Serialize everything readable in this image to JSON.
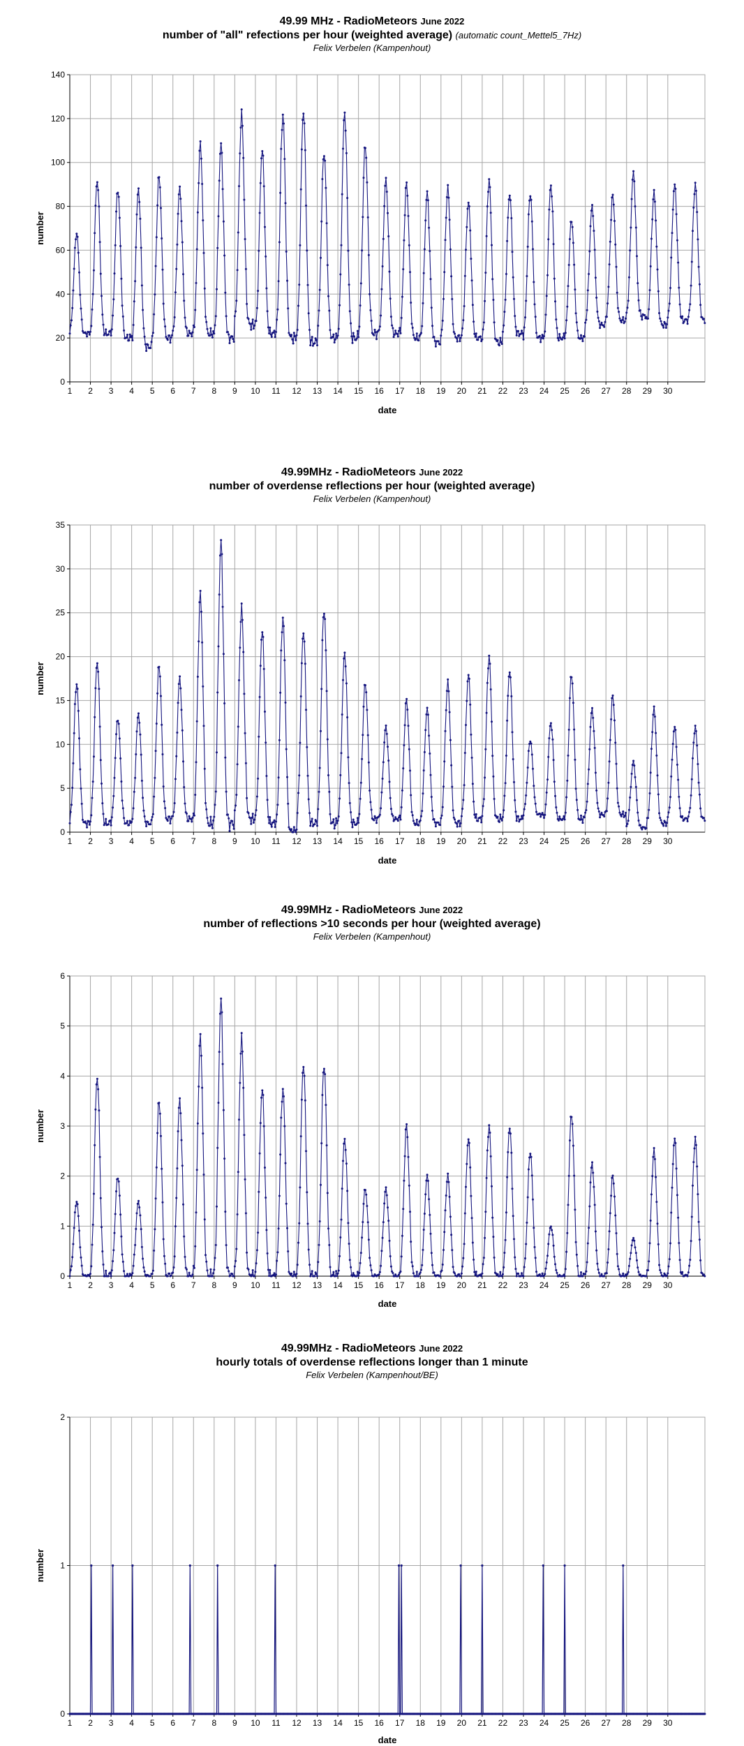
{
  "chart_data": [
    {
      "type": "line",
      "title_main": "49.99 MHz - RadioMeteors",
      "title_month": "June 2022",
      "subtitle": "number of \"all\" refections per hour (weighted average)",
      "subtitle_note": "(automatic count_Mettel5_7Hz)",
      "author": "Felix Verbelen (Kampenhout)",
      "xlabel": "date",
      "ylabel": "number",
      "x_ticks": [
        "1",
        "2",
        "3",
        "4",
        "5",
        "6",
        "7",
        "8",
        "9",
        "10",
        "11",
        "12",
        "13",
        "14",
        "15",
        "16",
        "17",
        "18",
        "19",
        "20",
        "21",
        "22",
        "23",
        "24",
        "25",
        "26",
        "27",
        "28",
        "29",
        "30"
      ],
      "ylim": [
        0,
        140
      ],
      "y_ticks": [
        "0",
        "20",
        "40",
        "60",
        "80",
        "100",
        "120",
        "140"
      ],
      "grid": true,
      "daily_peaks": [
        68,
        92,
        88,
        88,
        94,
        88,
        108,
        108,
        122,
        106,
        122,
        124,
        105,
        123,
        108,
        92,
        90,
        86,
        88,
        82,
        92,
        86,
        86,
        90,
        74,
        80,
        85,
        95,
        86,
        90
      ],
      "daily_troughs": [
        22,
        22,
        20,
        16,
        20,
        22,
        22,
        20,
        26,
        22,
        20,
        18,
        20,
        20,
        22,
        22,
        20,
        18,
        20,
        20,
        18,
        22,
        20,
        20,
        20,
        26,
        28,
        30,
        26,
        28
      ]
    },
    {
      "type": "line",
      "title_main": "49.99MHz - RadioMeteors",
      "title_month": "June 2022",
      "subtitle": "number of overdense reflections per hour (weighted average)",
      "author": "Felix Verbelen (Kampenhout)",
      "xlabel": "date",
      "ylabel": "number",
      "x_ticks": [
        "1",
        "2",
        "3",
        "4",
        "5",
        "6",
        "7",
        "8",
        "9",
        "10",
        "11",
        "12",
        "13",
        "14",
        "15",
        "16",
        "17",
        "18",
        "19",
        "20",
        "21",
        "22",
        "23",
        "24",
        "25",
        "26",
        "27",
        "28",
        "29",
        "30"
      ],
      "ylim": [
        0,
        35
      ],
      "y_ticks": [
        "0",
        "5",
        "10",
        "15",
        "20",
        "25",
        "30",
        "35"
      ],
      "grid": true,
      "daily_peaks": [
        17,
        19.5,
        13,
        13.5,
        19,
        17.5,
        27,
        33,
        25.5,
        23,
        24.5,
        23,
        25.5,
        20.5,
        17,
        12,
        15,
        14,
        17,
        18,
        20,
        18.5,
        10.5,
        12.5,
        18,
        14,
        15.5,
        8,
        14,
        12
      ],
      "daily_troughs": [
        1,
        1,
        1,
        1,
        1.5,
        1.5,
        1,
        1,
        1.5,
        1,
        0,
        1,
        1,
        1,
        1.5,
        1.5,
        1,
        1,
        1,
        1.5,
        1.5,
        1.5,
        2,
        1.5,
        1.5,
        2,
        2,
        0.5,
        1,
        1.5
      ]
    },
    {
      "type": "line",
      "title_main": "49.99MHz - RadioMeteors",
      "title_month": "June 2022",
      "subtitle": "number of reflections >10 seconds per hour (weighted average)",
      "author": "Felix Verbelen (Kampenhout)",
      "xlabel": "date",
      "ylabel": "number",
      "x_ticks": [
        "1",
        "2",
        "3",
        "4",
        "5",
        "6",
        "7",
        "8",
        "9",
        "10",
        "11",
        "12",
        "13",
        "14",
        "15",
        "16",
        "17",
        "18",
        "19",
        "20",
        "21",
        "22",
        "23",
        "24",
        "25",
        "26",
        "27",
        "28",
        "29",
        "30"
      ],
      "ylim": [
        0,
        6
      ],
      "y_ticks": [
        "0",
        "1",
        "2",
        "3",
        "4",
        "5",
        "6"
      ],
      "grid": true,
      "daily_peaks": [
        1.5,
        4,
        2,
        1.5,
        3.5,
        3.5,
        4.75,
        5.5,
        4.75,
        3.75,
        3.75,
        4.25,
        4.25,
        2.75,
        1.75,
        1.75,
        3,
        2,
        2,
        2.75,
        3,
        3,
        2.5,
        1,
        3.25,
        2.25,
        2,
        0.75,
        2.5,
        2.75
      ],
      "daily_troughs": [
        0,
        0,
        0,
        0,
        0,
        0,
        0,
        0,
        0,
        0,
        0,
        0,
        0,
        0,
        0,
        0,
        0,
        0,
        0,
        0,
        0,
        0,
        0,
        0,
        0,
        0,
        0,
        0,
        0,
        0
      ]
    },
    {
      "type": "line",
      "title_main": "49.99MHz - RadioMeteors",
      "title_month": "June 2022",
      "subtitle": "hourly totals of overdense reflections longer than 1 minute",
      "author": "Felix Verbelen (Kampenhout/BE)",
      "xlabel": "date",
      "ylabel": "number",
      "x_ticks": [
        "1",
        "2",
        "3",
        "4",
        "5",
        "6",
        "7",
        "8",
        "9",
        "10",
        "11",
        "12",
        "13",
        "14",
        "15",
        "16",
        "17",
        "18",
        "19",
        "20",
        "21",
        "22",
        "23",
        "24",
        "25",
        "26",
        "27",
        "28",
        "29",
        "30"
      ],
      "ylim": [
        0,
        2
      ],
      "y_ticks": [
        "0",
        "1",
        "2"
      ],
      "grid": true,
      "spikes_x": [
        2.05,
        3.1,
        4.05,
        6.85,
        8.15,
        10.95,
        16.95,
        17.1,
        19.95,
        21.0,
        23.95,
        25.0,
        27.85
      ],
      "spike_value": 1
    }
  ],
  "colors": {
    "series": "#14147e",
    "grid": "#a6a6a6",
    "axis": "#000000"
  }
}
